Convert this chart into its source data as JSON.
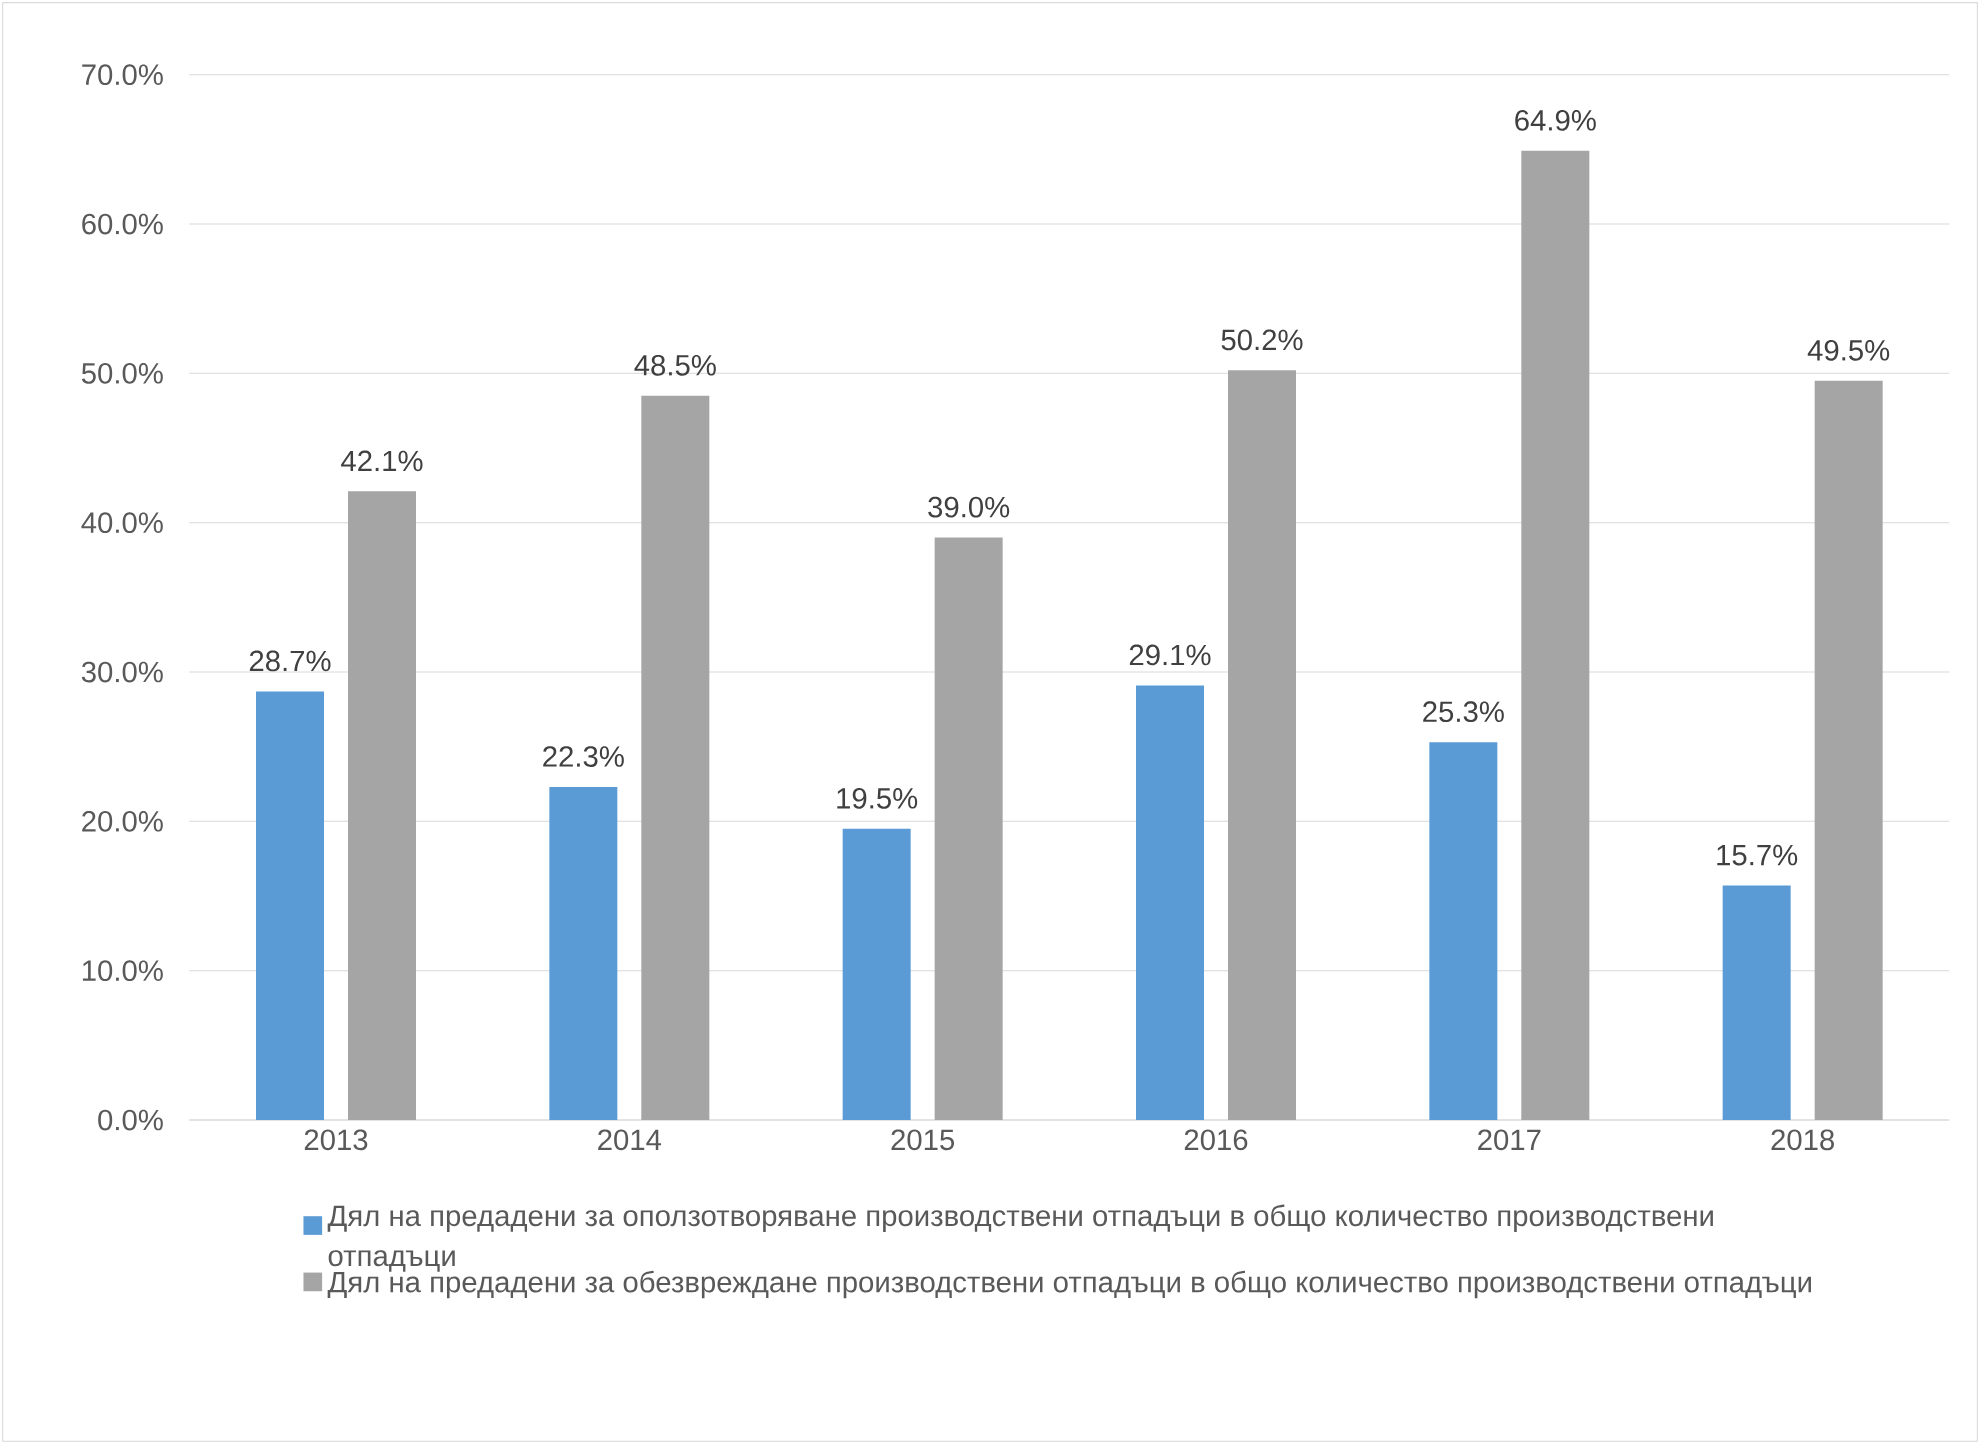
{
  "chart_data": {
    "type": "bar",
    "categories": [
      "2013",
      "2014",
      "2015",
      "2016",
      "2017",
      "2018"
    ],
    "series": [
      {
        "name": "Дял на предадени за оползотворяване производствени отпадъци в общо количество производствени отпадъци",
        "color": "#5b9bd5",
        "values": [
          28.7,
          22.3,
          19.5,
          29.1,
          25.3,
          15.7
        ],
        "value_labels": [
          "28.7%",
          "22.3%",
          "19.5%",
          "29.1%",
          "25.3%",
          "15.7%"
        ]
      },
      {
        "name": "Дял на предадени за обезвреждане производствени отпадъци в общо количество производствени отпадъци",
        "color": "#a5a5a5",
        "values": [
          42.1,
          48.5,
          39.0,
          50.2,
          64.9,
          49.5
        ],
        "value_labels": [
          "42.1%",
          "48.5%",
          "39.0%",
          "50.2%",
          "64.9%",
          "49.5%"
        ]
      }
    ],
    "ylim": [
      0,
      70
    ],
    "yticks": [
      {
        "value": 0,
        "label": "0.0%"
      },
      {
        "value": 10,
        "label": "10.0%"
      },
      {
        "value": 20,
        "label": "20.0%"
      },
      {
        "value": 30,
        "label": "30.0%"
      },
      {
        "value": 40,
        "label": "40.0%"
      },
      {
        "value": 50,
        "label": "50.0%"
      },
      {
        "value": 60,
        "label": "60.0%"
      },
      {
        "value": 70,
        "label": "70.0%"
      }
    ],
    "grid": "y",
    "legend": "bottom"
  }
}
